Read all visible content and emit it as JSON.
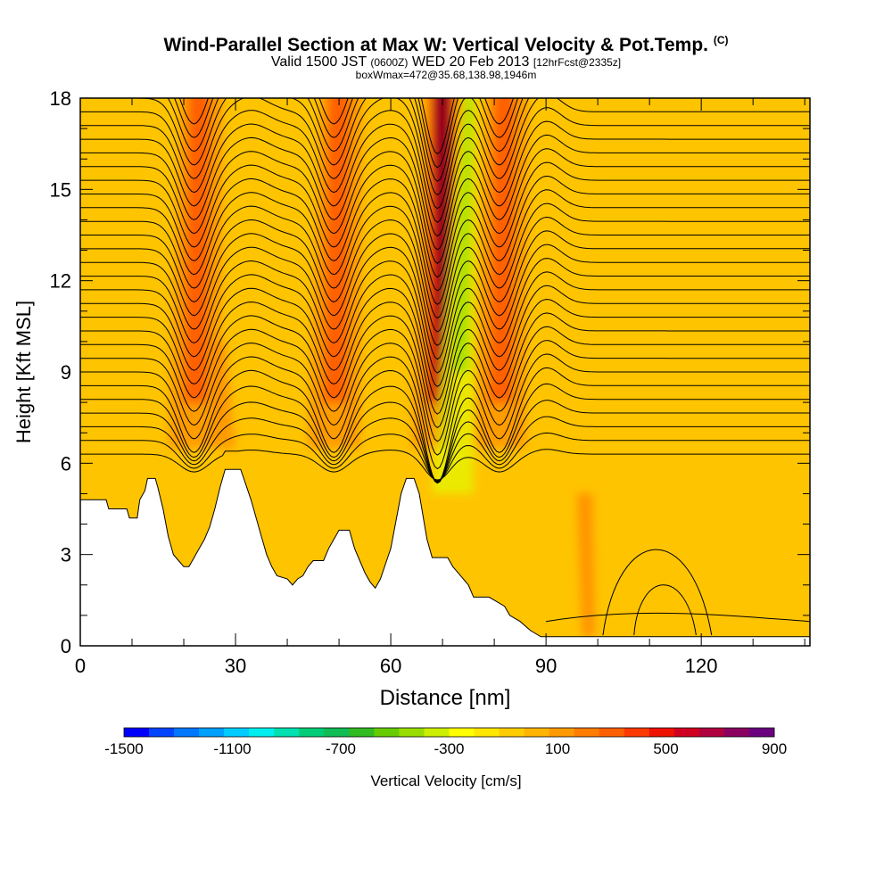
{
  "header": {
    "title": "Wind-Parallel Section at Max W: Vertical Velocity & Pot.Temp.",
    "copyright_mark": "(C)",
    "valid_prefix": "Valid 1500 JST",
    "valid_z": "(0600Z)",
    "valid_date": "WED 20 Feb 2013",
    "forecast": "[12hrFcst@2335z]",
    "box_info": "boxWmax=472@35.68,138.98,1946m"
  },
  "chart_data": {
    "type": "heatmap",
    "xlabel": "Distance [nm]",
    "ylabel": "Height [Kft MSL]",
    "xlim": [
      0,
      141
    ],
    "ylim": [
      0,
      18
    ],
    "x_ticks": [
      0,
      30,
      60,
      90,
      120
    ],
    "y_ticks": [
      0,
      3,
      6,
      9,
      12,
      15,
      18
    ],
    "terrain_profile_kft": [
      [
        0,
        4.8
      ],
      [
        5,
        4.8
      ],
      [
        5.5,
        4.5
      ],
      [
        9,
        4.5
      ],
      [
        9.5,
        4.2
      ],
      [
        11,
        4.2
      ],
      [
        11.5,
        4.8
      ],
      [
        12.5,
        5.1
      ],
      [
        13,
        5.5
      ],
      [
        14.5,
        5.5
      ],
      [
        15,
        5.2
      ],
      [
        16,
        4.5
      ],
      [
        17,
        3.6
      ],
      [
        18,
        3.0
      ],
      [
        19,
        2.8
      ],
      [
        20,
        2.6
      ],
      [
        21,
        2.6
      ],
      [
        22,
        2.9
      ],
      [
        23,
        3.2
      ],
      [
        24,
        3.5
      ],
      [
        25,
        3.9
      ],
      [
        26,
        4.5
      ],
      [
        27,
        5.2
      ],
      [
        28,
        5.8
      ],
      [
        31,
        5.8
      ],
      [
        32,
        5.3
      ],
      [
        33,
        4.8
      ],
      [
        34,
        4.2
      ],
      [
        35,
        3.6
      ],
      [
        36,
        3.0
      ],
      [
        37,
        2.6
      ],
      [
        38,
        2.3
      ],
      [
        40,
        2.2
      ],
      [
        41,
        2.0
      ],
      [
        42,
        2.2
      ],
      [
        43,
        2.3
      ],
      [
        44,
        2.6
      ],
      [
        45,
        2.8
      ],
      [
        47,
        2.8
      ],
      [
        48,
        3.2
      ],
      [
        50,
        3.8
      ],
      [
        52,
        3.8
      ],
      [
        53,
        3.2
      ],
      [
        54,
        2.8
      ],
      [
        55,
        2.4
      ],
      [
        56,
        2.1
      ],
      [
        57,
        1.9
      ],
      [
        58,
        2.2
      ],
      [
        59,
        2.7
      ],
      [
        60,
        3.2
      ],
      [
        61,
        4.1
      ],
      [
        62,
        5.0
      ],
      [
        63,
        5.5
      ],
      [
        64.5,
        5.5
      ],
      [
        65.5,
        5.0
      ],
      [
        67,
        3.5
      ],
      [
        68,
        2.9
      ],
      [
        71,
        2.9
      ],
      [
        72,
        2.6
      ],
      [
        73,
        2.4
      ],
      [
        75,
        2.0
      ],
      [
        76,
        1.6
      ],
      [
        79,
        1.6
      ],
      [
        80,
        1.5
      ],
      [
        82,
        1.3
      ],
      [
        83,
        1.0
      ],
      [
        85,
        0.8
      ],
      [
        87,
        0.5
      ],
      [
        89,
        0.3
      ],
      [
        95,
        0.3
      ],
      [
        141,
        0.3
      ]
    ],
    "vertical_velocity_maxima_nm": [
      {
        "x": 23,
        "peak_cm_s": 400
      },
      {
        "x": 50,
        "peak_cm_s": 300
      },
      {
        "x": 70,
        "peak_cm_s": 900
      },
      {
        "x": 82,
        "peak_cm_s": 500
      }
    ],
    "vertical_velocity_minimum_nm": [
      {
        "x": 75,
        "peak_cm_s": -300
      }
    ],
    "isentrope_contour_count": 30,
    "colorbar": {
      "label": "Vertical Velocity [cm/s]",
      "min": -1500,
      "max": 900,
      "step": 100,
      "tick_values": [
        -1500,
        -1100,
        -700,
        -300,
        100,
        500,
        900
      ],
      "tick_labels": [
        "-1500",
        "-1100",
        "-700",
        "-300",
        "100",
        "500",
        "900"
      ],
      "colors": [
        "#0000ff",
        "#0044ff",
        "#0077ff",
        "#00a0ff",
        "#00ccff",
        "#00eeee",
        "#00e0b0",
        "#00cc77",
        "#11bb55",
        "#33bb22",
        "#66cc00",
        "#99dd00",
        "#ccee00",
        "#ffff00",
        "#ffe600",
        "#ffcc00",
        "#ffb400",
        "#ff9900",
        "#ff7d00",
        "#ff5f00",
        "#ff3a00",
        "#ee1100",
        "#d00020",
        "#b00040",
        "#8a0060",
        "#6a0080"
      ]
    }
  }
}
